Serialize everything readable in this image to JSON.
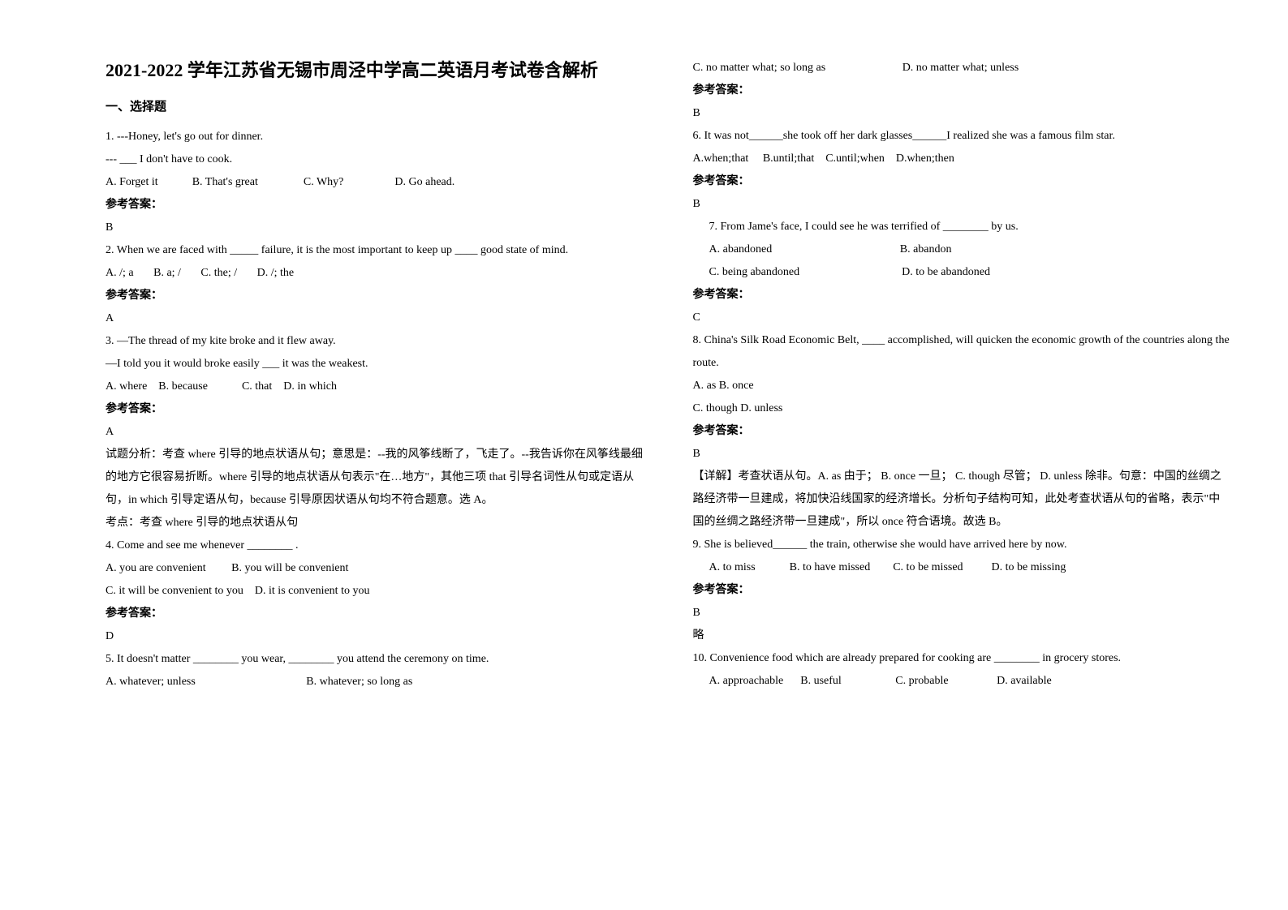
{
  "title": "2021-2022 学年江苏省无锡市周泾中学高二英语月考试卷含解析",
  "section1": "一、选择题",
  "answer_label": "参考答案：",
  "col1": {
    "q1_l1": "1. ---Honey, let's go out for dinner.",
    "q1_l2": "--- ___ I don't have to cook.",
    "q1_opts": "A. Forget it            B. That's great                C. Why?                  D. Go ahead.",
    "q1_ans": "B",
    "q2_l1": "2. When we are faced with _____ failure, it is the most important to keep up ____ good state of mind.",
    "q2_opts": "A. /; a       B. a; /       C. the; /       D. /; the",
    "q2_ans": "A",
    "q3_l1": "3. —The thread of my kite broke and it flew away.",
    "q3_l2": "—I told you it would broke easily ___ it was the weakest.",
    "q3_opts": "A. where    B. because            C. that    D. in which",
    "q3_ans": "A",
    "q3_exp1": "试题分析：考查 where 引导的地点状语从句；意思是：--我的风筝线断了，飞走了。--我告诉你在风筝线最细的地方它很容易折断。where 引导的地点状语从句表示\"在…地方\"，其他三项 that 引导名词性从句或定语从句，in which 引导定语从句，because 引导原因状语从句均不符合题意。选 A。",
    "q3_exp2": "考点：考查 where 引导的地点状语从句",
    "q4_l1": "4. Come and see me whenever ________ .",
    "q4_opts1": "A. you are convenient         B. you will be convenient",
    "q4_opts2": "C. it will be convenient to you    D. it is convenient to you",
    "q4_ans": "D",
    "q5_l1": "5. It doesn't matter ________ you wear, ________ you attend the ceremony on time.",
    "q5_opts1": "A. whatever; unless                                       B. whatever; so long as"
  },
  "col2": {
    "q5_opts2": "C. no matter what; so long as                           D. no matter what; unless",
    "q5_ans": "B",
    "q6_l1": "6. It was not______she took off her dark glasses______I realized she was a famous film star.",
    "q6_opts": "A.when;that     B.until;that    C.until;when    D.when;then",
    "q6_ans": "B",
    "q7_l1": "7.  From Jame's face, I could see he was terrified of ________ by us.",
    "q7_opts1": "A. abandoned                                             B. abandon",
    "q7_opts2": "C. being abandoned                                    D. to be abandoned",
    "q7_ans": "C",
    "q8_l1": "8. China's Silk Road Economic Belt, ____ accomplished, will quicken the economic growth of the countries along the route.",
    "q8_opts1": "A. as    B. once",
    "q8_opts2": "C. though    D. unless",
    "q8_ans": "B",
    "q8_exp": "【详解】考查状语从句。A. as 由于；         B. once 一旦；     C. though 尽管；          D. unless 除非。句意：中国的丝绸之路经济带一旦建成，将加快沿线国家的经济增长。分析句子结构可知，此处考查状语从句的省略，表示\"中国的丝绸之路经济带一旦建成\"，所以 once 符合语境。故选 B。",
    "q9_l1": "9. She is believed______ the train, otherwise she would have arrived here by now.",
    "q9_opts": "A. to miss            B. to have missed        C. to be missed          D. to be missing",
    "q9_ans": "B",
    "q9_note": "略",
    "q10_l1": "10. Convenience food which are already prepared for cooking are ________ in grocery stores.",
    "q10_opts": "A. approachable      B. useful                   C. probable                 D. available"
  }
}
